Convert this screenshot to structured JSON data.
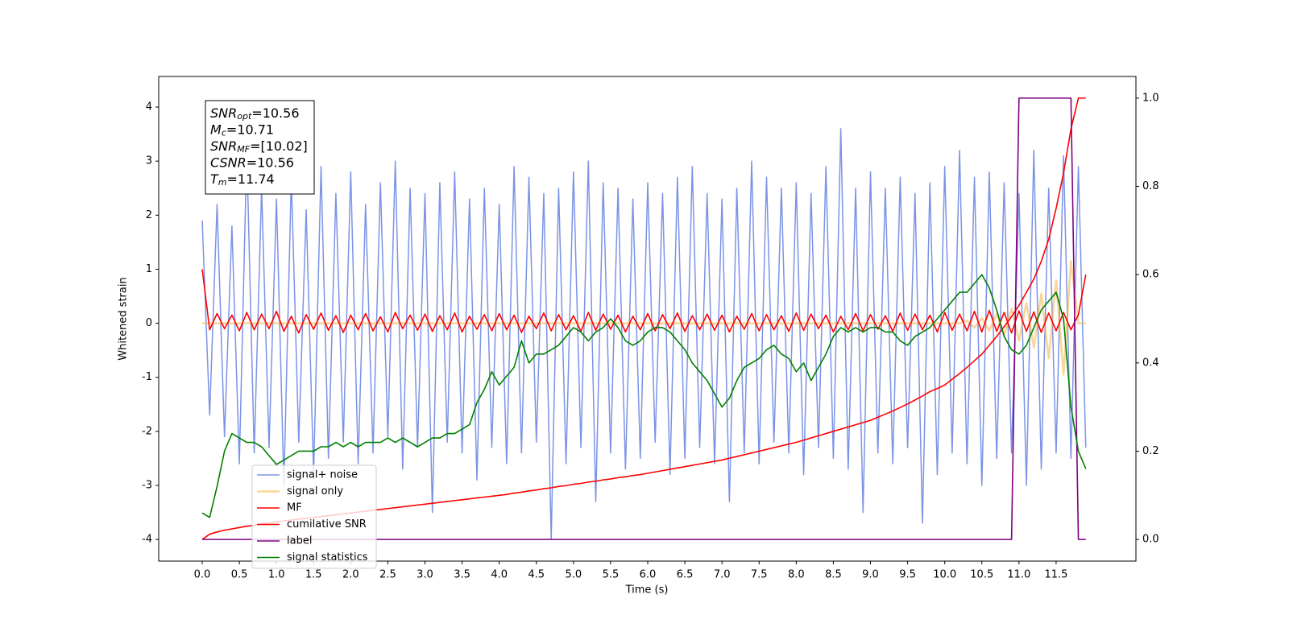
{
  "chart_data": {
    "type": "line",
    "xlabel": "Time (s)",
    "ylabel": "Whitened strain",
    "annotations": [
      {
        "text": "SNR",
        "sub": "opt",
        "value": "=10.56"
      },
      {
        "text": "M",
        "sub": "c",
        "value": "=10.71"
      },
      {
        "text": "SNR",
        "sub": "MF",
        "value": "=[10.02]"
      },
      {
        "text": "CSNR",
        "value": "=10.56"
      },
      {
        "text": "T",
        "sub": "m",
        "value": "=11.74"
      }
    ],
    "xlim": [
      -0.586,
      12.575
    ],
    "ylim": [
      -4.4,
      4.566
    ],
    "y2lim": [
      -0.049,
      1.049
    ],
    "xticks": [
      {
        "value": 0,
        "label": "0.0"
      },
      0.5,
      {
        "value": 1,
        "label": "1.0"
      },
      1.5,
      {
        "value": 2,
        "label": "2.0"
      },
      2.5,
      {
        "value": 3,
        "label": "3.0"
      },
      3.5,
      {
        "value": 4,
        "label": "4.0"
      },
      4.5,
      {
        "value": 5,
        "label": "5.0"
      },
      5.5,
      {
        "value": 6,
        "label": "6.0"
      },
      6.5,
      {
        "value": 7,
        "label": "7.0"
      },
      7.5,
      {
        "value": 8,
        "label": "8.0"
      },
      8.5,
      {
        "value": 9,
        "label": "9.0"
      },
      9.5,
      {
        "value": 10,
        "label": "10.0"
      },
      10.5,
      {
        "value": 11,
        "label": "11.0"
      },
      11.5
    ],
    "yticks": [
      -4,
      -3,
      -2,
      -1,
      0,
      1,
      2,
      3,
      4
    ],
    "y2ticks": [
      {
        "value": 0,
        "label": "0.0"
      },
      0.2,
      0.4,
      0.6,
      0.8,
      {
        "value": 1,
        "label": "1.0"
      }
    ],
    "grid": false,
    "legend": "lower left",
    "x": [
      0,
      0.1,
      0.2,
      0.3,
      0.4,
      0.5,
      0.6,
      0.7,
      0.8,
      0.9,
      1,
      1.1,
      1.2,
      1.3,
      1.4,
      1.5,
      1.6,
      1.7,
      1.8,
      1.9,
      2,
      2.1,
      2.2,
      2.3,
      2.4,
      2.5,
      2.6,
      2.7,
      2.8,
      2.9,
      3,
      3.1,
      3.2,
      3.3,
      3.4,
      3.5,
      3.6,
      3.7,
      3.8,
      3.9,
      4,
      4.1,
      4.2,
      4.3,
      4.4,
      4.5,
      4.6,
      4.7,
      4.8,
      4.9,
      5,
      5.1,
      5.2,
      5.3,
      5.4,
      5.5,
      5.6,
      5.7,
      5.8,
      5.9,
      6,
      6.1,
      6.2,
      6.3,
      6.4,
      6.5,
      6.6,
      6.7,
      6.8,
      6.9,
      7,
      7.1,
      7.2,
      7.3,
      7.4,
      7.5,
      7.6,
      7.7,
      7.8,
      7.9,
      8,
      8.1,
      8.2,
      8.3,
      8.4,
      8.5,
      8.6,
      8.7,
      8.8,
      8.9,
      9,
      9.1,
      9.2,
      9.3,
      9.4,
      9.5,
      9.6,
      9.7,
      9.8,
      9.9,
      10,
      10.1,
      10.2,
      10.3,
      10.4,
      10.5,
      10.6,
      10.7,
      10.8,
      10.9,
      11,
      11.1,
      11.2,
      11.3,
      11.4,
      11.5,
      11.6,
      11.7,
      11.8,
      11.9
    ],
    "series": [
      {
        "name": "signal+ noise",
        "color": "#7b93e6",
        "values": [
          1.9,
          -1.7,
          2.2,
          -2.1,
          1.8,
          -2.6,
          3.2,
          -2.4,
          2.5,
          -2.3,
          2.3,
          -3.0,
          2.7,
          -2.2,
          2.1,
          -2.8,
          2.9,
          -2.5,
          2.4,
          -2.2,
          2.8,
          -2.6,
          2.2,
          -2.4,
          2.6,
          -2.1,
          3.0,
          -2.7,
          2.5,
          -2.3,
          2.4,
          -3.5,
          2.6,
          -2.2,
          2.8,
          -2.4,
          2.3,
          -2.9,
          2.5,
          -2.3,
          2.2,
          -2.6,
          2.9,
          -2.4,
          2.7,
          -2.2,
          2.4,
          -4.0,
          2.5,
          -2.6,
          2.8,
          -2.3,
          3.0,
          -3.3,
          2.6,
          -2.4,
          2.5,
          -2.7,
          2.3,
          -2.5,
          2.6,
          -2.2,
          2.4,
          -2.8,
          2.7,
          -2.5,
          2.9,
          -2.3,
          2.4,
          -2.6,
          2.3,
          -3.3,
          2.5,
          -2.4,
          3.0,
          -2.6,
          2.7,
          -2.2,
          2.5,
          -2.4,
          2.6,
          -2.8,
          2.4,
          -2.3,
          2.9,
          -2.5,
          3.6,
          -2.7,
          2.5,
          -3.5,
          2.8,
          -2.4,
          2.5,
          -2.6,
          2.7,
          -2.3,
          2.4,
          -3.7,
          2.6,
          -2.8,
          2.9,
          -2.4,
          3.2,
          -2.6,
          2.7,
          -3.0,
          2.8,
          -2.5,
          2.6,
          -2.4,
          2.4,
          -3.0,
          3.2,
          -2.7,
          2.5,
          -2.4,
          3.1,
          -2.5,
          2.9,
          -2.3
        ]
      },
      {
        "name": "signal only",
        "color": "#f5b342",
        "values": [
          0,
          0,
          0,
          0,
          0,
          0,
          0,
          0,
          0,
          0,
          0,
          0,
          0,
          0,
          0,
          0,
          0,
          0,
          0,
          0,
          0,
          0,
          0,
          0,
          0,
          0,
          0,
          0,
          0,
          0,
          0,
          0,
          0,
          0,
          0,
          0,
          0,
          0,
          0,
          0,
          0,
          0,
          0,
          0,
          0,
          0,
          0,
          0,
          0,
          0,
          0,
          0,
          0,
          0,
          0,
          0,
          0,
          0,
          0,
          0,
          0,
          0,
          0,
          0,
          0,
          0,
          0,
          0,
          0,
          0,
          0,
          0,
          0,
          0,
          0,
          0,
          0,
          0,
          0,
          0,
          0,
          0,
          0,
          0,
          0,
          0,
          0,
          0,
          0,
          0,
          0,
          0,
          0,
          0,
          0,
          0,
          0,
          0,
          0,
          0,
          0,
          0,
          0,
          0.05,
          -0.08,
          0.1,
          -0.14,
          0.18,
          -0.22,
          0.27,
          -0.32,
          0.38,
          -0.45,
          0.55,
          -0.65,
          0.8,
          -0.95,
          1.15,
          0,
          0
        ]
      },
      {
        "name": "MF",
        "color": "#ff0000",
        "values": [
          1.0,
          -0.12,
          0.18,
          -0.1,
          0.15,
          -0.14,
          0.2,
          -0.12,
          0.17,
          -0.1,
          0.22,
          -0.15,
          0.13,
          -0.18,
          0.16,
          -0.11,
          0.19,
          -0.13,
          0.14,
          -0.17,
          0.15,
          -0.12,
          0.18,
          -0.14,
          0.12,
          -0.16,
          0.2,
          -0.1,
          0.15,
          -0.13,
          0.17,
          -0.15,
          0.14,
          -0.12,
          0.19,
          -0.16,
          0.13,
          -0.11,
          0.16,
          -0.14,
          0.18,
          -0.12,
          0.15,
          -0.17,
          0.13,
          -0.1,
          0.19,
          -0.14,
          0.16,
          -0.12,
          0.14,
          -0.15,
          0.2,
          -0.13,
          0.17,
          -0.11,
          0.15,
          -0.16,
          0.13,
          -0.12,
          0.18,
          -0.14,
          0.16,
          -0.1,
          0.19,
          -0.15,
          0.14,
          -0.12,
          0.17,
          -0.13,
          0.15,
          -0.16,
          0.13,
          -0.11,
          0.18,
          -0.14,
          0.16,
          -0.12,
          0.14,
          -0.15,
          0.19,
          -0.13,
          0.17,
          -0.1,
          0.15,
          -0.16,
          0.13,
          -0.12,
          0.18,
          -0.14,
          0.16,
          -0.11,
          0.14,
          -0.15,
          0.19,
          -0.13,
          0.17,
          -0.12,
          0.15,
          -0.16,
          0.2,
          -0.13,
          0.17,
          -0.14,
          0.22,
          -0.16,
          0.24,
          -0.15,
          0.2,
          -0.18,
          0.23,
          -0.15,
          0.21,
          -0.17,
          0.19,
          -0.14,
          0.2,
          -0.12,
          0.16,
          0.9
        ]
      },
      {
        "name": "cumilative SNR",
        "color": "#ff0000",
        "axis": "y2",
        "values": [
          0,
          0.012,
          0.017,
          0.021,
          0.024,
          0.027,
          0.03,
          0.032,
          0.035,
          0.037,
          0.04,
          0.042,
          0.044,
          0.046,
          0.048,
          0.05,
          0.052,
          0.054,
          0.056,
          0.058,
          0.06,
          0.062,
          0.064,
          0.066,
          0.068,
          0.07,
          0.072,
          0.074,
          0.076,
          0.078,
          0.08,
          0.082,
          0.084,
          0.086,
          0.088,
          0.09,
          0.092,
          0.094,
          0.096,
          0.098,
          0.1,
          0.102,
          0.105,
          0.107,
          0.11,
          0.112,
          0.115,
          0.117,
          0.12,
          0.122,
          0.125,
          0.127,
          0.13,
          0.132,
          0.135,
          0.137,
          0.14,
          0.142,
          0.145,
          0.147,
          0.15,
          0.153,
          0.156,
          0.159,
          0.162,
          0.165,
          0.168,
          0.171,
          0.174,
          0.177,
          0.18,
          0.184,
          0.188,
          0.192,
          0.196,
          0.2,
          0.204,
          0.208,
          0.212,
          0.216,
          0.22,
          0.225,
          0.23,
          0.235,
          0.24,
          0.245,
          0.25,
          0.255,
          0.26,
          0.265,
          0.27,
          0.277,
          0.284,
          0.291,
          0.299,
          0.307,
          0.316,
          0.325,
          0.335,
          0.342,
          0.35,
          0.363,
          0.376,
          0.39,
          0.405,
          0.42,
          0.44,
          0.46,
          0.482,
          0.505,
          0.53,
          0.56,
          0.59,
          0.63,
          0.68,
          0.75,
          0.83,
          0.93,
          1.0,
          1.0
        ]
      },
      {
        "name": "label",
        "color": "#800080",
        "axis": "y2",
        "values": [
          0,
          0,
          0,
          0,
          0,
          0,
          0,
          0,
          0,
          0,
          0,
          0,
          0,
          0,
          0,
          0,
          0,
          0,
          0,
          0,
          0,
          0,
          0,
          0,
          0,
          0,
          0,
          0,
          0,
          0,
          0,
          0,
          0,
          0,
          0,
          0,
          0,
          0,
          0,
          0,
          0,
          0,
          0,
          0,
          0,
          0,
          0,
          0,
          0,
          0,
          0,
          0,
          0,
          0,
          0,
          0,
          0,
          0,
          0,
          0,
          0,
          0,
          0,
          0,
          0,
          0,
          0,
          0,
          0,
          0,
          0,
          0,
          0,
          0,
          0,
          0,
          0,
          0,
          0,
          0,
          0,
          0,
          0,
          0,
          0,
          0,
          0,
          0,
          0,
          0,
          0,
          0,
          0,
          0,
          0,
          0,
          0,
          0,
          0,
          0,
          0,
          0,
          0,
          0,
          0,
          0,
          0,
          0,
          0,
          0,
          1,
          1,
          1,
          1,
          1,
          1,
          1,
          1,
          0,
          0
        ]
      },
      {
        "name": "signal statistics",
        "color": "#008000",
        "axis": "y2",
        "values": [
          0.06,
          0.05,
          0.12,
          0.2,
          0.24,
          0.23,
          0.22,
          0.22,
          0.21,
          0.19,
          0.17,
          0.18,
          0.19,
          0.2,
          0.2,
          0.2,
          0.21,
          0.21,
          0.22,
          0.21,
          0.22,
          0.21,
          0.22,
          0.22,
          0.22,
          0.23,
          0.22,
          0.23,
          0.22,
          0.21,
          0.22,
          0.23,
          0.23,
          0.24,
          0.24,
          0.25,
          0.26,
          0.31,
          0.34,
          0.38,
          0.35,
          0.37,
          0.39,
          0.45,
          0.4,
          0.42,
          0.42,
          0.43,
          0.44,
          0.46,
          0.48,
          0.47,
          0.45,
          0.47,
          0.48,
          0.5,
          0.48,
          0.45,
          0.44,
          0.45,
          0.47,
          0.48,
          0.48,
          0.47,
          0.45,
          0.43,
          0.4,
          0.38,
          0.36,
          0.33,
          0.3,
          0.32,
          0.36,
          0.39,
          0.4,
          0.41,
          0.43,
          0.44,
          0.42,
          0.41,
          0.38,
          0.4,
          0.36,
          0.39,
          0.42,
          0.46,
          0.48,
          0.47,
          0.48,
          0.47,
          0.48,
          0.48,
          0.47,
          0.47,
          0.45,
          0.44,
          0.46,
          0.47,
          0.48,
          0.5,
          0.52,
          0.54,
          0.56,
          0.56,
          0.58,
          0.6,
          0.57,
          0.52,
          0.46,
          0.43,
          0.42,
          0.44,
          0.48,
          0.52,
          0.54,
          0.56,
          0.5,
          0.3,
          0.2,
          0.16
        ]
      }
    ]
  }
}
